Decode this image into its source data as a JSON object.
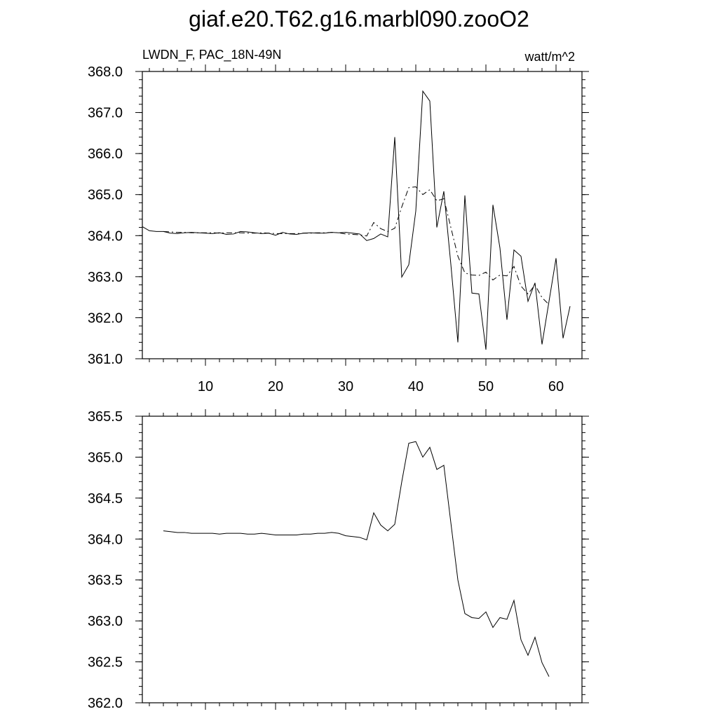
{
  "title": "giaf.e20.T62.g16.marbl090.zooO2",
  "chart_data": [
    {
      "type": "line",
      "subtitle_left": "LWDN_F, PAC_18N-49N",
      "subtitle_right": "watt/m^2",
      "xlim": [
        1,
        63.7
      ],
      "xticks": [
        10,
        20,
        30,
        40,
        50,
        60
      ],
      "xminor_step": 2,
      "show_xtick_labels": true,
      "ylim": [
        361,
        368
      ],
      "yminor_step": 0.2,
      "yticks": [
        {
          "value": 361,
          "label": "361.0"
        },
        {
          "value": 362,
          "label": "362.0"
        },
        {
          "value": 363,
          "label": "363.0"
        },
        {
          "value": 364,
          "label": "364.0"
        },
        {
          "value": 365,
          "label": "365.0"
        },
        {
          "value": 366,
          "label": "366.0"
        },
        {
          "value": 367,
          "label": "367.0"
        },
        {
          "value": 368,
          "label": "368.0"
        }
      ],
      "series": [
        {
          "color": "#000000",
          "dash": false,
          "x": [
            1,
            2,
            3,
            4,
            5,
            6,
            7,
            8,
            9,
            10,
            11,
            12,
            13,
            14,
            15,
            16,
            17,
            18,
            19,
            20,
            21,
            22,
            23,
            24,
            25,
            26,
            27,
            28,
            29,
            30,
            31,
            32,
            33,
            34,
            35,
            36,
            37,
            38,
            39,
            40,
            41,
            42,
            43,
            44,
            45,
            46,
            47,
            48,
            49,
            50,
            51,
            52,
            53,
            54,
            55,
            56,
            57,
            58,
            59,
            60,
            61,
            62
          ],
          "values": [
            364.22,
            364.12,
            364.1,
            364.1,
            364.06,
            364.05,
            364.07,
            364.08,
            364.07,
            364.06,
            364.05,
            364.07,
            364.03,
            364.04,
            364.1,
            364.09,
            364.07,
            364.05,
            364.06,
            364.01,
            364.08,
            364.04,
            364.03,
            364.06,
            364.07,
            364.06,
            364.06,
            364.08,
            364.07,
            364.08,
            364.06,
            364.04,
            363.88,
            363.93,
            364.04,
            363.97,
            366.4,
            362.99,
            363.29,
            364.6,
            367.52,
            367.28,
            364.2,
            365.08,
            363.3,
            361.4,
            364.98,
            362.6,
            362.58,
            361.22,
            364.75,
            363.7,
            361.95,
            363.65,
            363.5,
            362.4,
            362.85,
            361.35,
            362.4,
            363.45,
            361.5,
            362.28
          ]
        },
        {
          "color": "#000000",
          "dash": true,
          "x": [
            4,
            5,
            6,
            7,
            8,
            9,
            10,
            11,
            12,
            13,
            14,
            15,
            16,
            17,
            18,
            19,
            20,
            21,
            22,
            23,
            24,
            25,
            26,
            27,
            28,
            29,
            30,
            31,
            32,
            33,
            34,
            35,
            36,
            37,
            38,
            39,
            40,
            41,
            42,
            43,
            44,
            45,
            46,
            47,
            48,
            49,
            50,
            51,
            52,
            53,
            54,
            55,
            56,
            57,
            58,
            59
          ],
          "values": [
            364.1,
            364.09,
            364.08,
            364.08,
            364.07,
            364.07,
            364.07,
            364.07,
            364.06,
            364.07,
            364.07,
            364.07,
            364.06,
            364.06,
            364.07,
            364.06,
            364.05,
            364.05,
            364.05,
            364.05,
            364.06,
            364.06,
            364.07,
            364.07,
            364.08,
            364.07,
            364.04,
            364.03,
            364.02,
            363.99,
            364.32,
            364.17,
            364.1,
            364.18,
            364.7,
            365.17,
            365.19,
            365.0,
            365.12,
            364.85,
            364.9,
            364.2,
            363.5,
            363.09,
            363.04,
            363.03,
            363.11,
            362.92,
            363.04,
            363.02,
            363.25,
            362.77,
            362.58,
            362.8,
            362.49,
            362.32
          ]
        }
      ]
    },
    {
      "type": "line",
      "xlim": [
        1,
        63.7
      ],
      "xticks": [
        10,
        20,
        30,
        40,
        50,
        60
      ],
      "xminor_step": 2,
      "show_xtick_labels": false,
      "ylim": [
        362,
        365.5
      ],
      "yminor_step": 0.1,
      "yticks": [
        {
          "value": 362,
          "label": "362.0"
        },
        362.5,
        {
          "value": 363,
          "label": "363.0"
        },
        363.5,
        {
          "value": 364,
          "label": "364.0"
        },
        364.5,
        {
          "value": 365,
          "label": "365.0"
        },
        365.5
      ],
      "series": [
        {
          "color": "#000000",
          "dash": false,
          "x": [
            4,
            5,
            6,
            7,
            8,
            9,
            10,
            11,
            12,
            13,
            14,
            15,
            16,
            17,
            18,
            19,
            20,
            21,
            22,
            23,
            24,
            25,
            26,
            27,
            28,
            29,
            30,
            31,
            32,
            33,
            34,
            35,
            36,
            37,
            38,
            39,
            40,
            41,
            42,
            43,
            44,
            45,
            46,
            47,
            48,
            49,
            50,
            51,
            52,
            53,
            54,
            55,
            56,
            57,
            58,
            59
          ],
          "values": [
            364.1,
            364.09,
            364.08,
            364.08,
            364.07,
            364.07,
            364.07,
            364.07,
            364.06,
            364.07,
            364.07,
            364.07,
            364.06,
            364.06,
            364.07,
            364.06,
            364.05,
            364.05,
            364.05,
            364.05,
            364.06,
            364.06,
            364.07,
            364.07,
            364.08,
            364.07,
            364.04,
            364.03,
            364.02,
            363.99,
            364.32,
            364.17,
            364.1,
            364.18,
            364.7,
            365.17,
            365.19,
            365.0,
            365.12,
            364.85,
            364.9,
            364.2,
            363.5,
            363.09,
            363.04,
            363.03,
            363.11,
            362.92,
            363.04,
            363.02,
            363.25,
            362.77,
            362.58,
            362.8,
            362.49,
            362.32
          ]
        }
      ]
    }
  ]
}
